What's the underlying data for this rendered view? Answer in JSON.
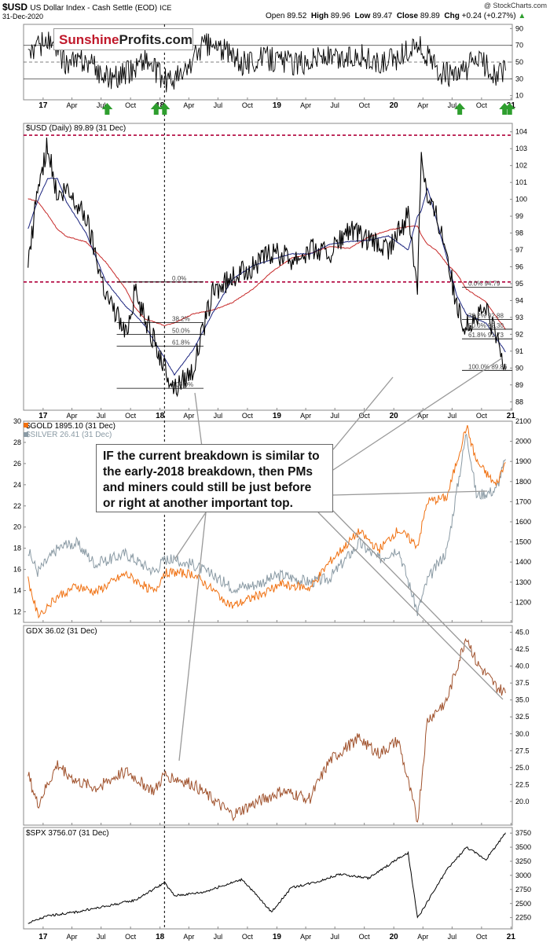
{
  "header": {
    "symbol": "$USD",
    "symbol_desc": "US Dollar Index - Cash Settle (EOD)",
    "exchange": "ICE",
    "date": "31-Dec-2020",
    "source": "@ StockCharts.com",
    "open_label": "Open",
    "open": "89.52",
    "high_label": "High",
    "high": "89.96",
    "low_label": "Low",
    "low": "89.47",
    "close_label": "Close",
    "close": "89.89",
    "chg_label": "Chg",
    "chg": "+0.24 (+0.27%)"
  },
  "logo": {
    "part1": "Sunshine",
    "part2": "Profits.com"
  },
  "callout": {
    "text": "IF the current breakdown is similar to the early-2018 breakdown, then PMs and miners could still be just before or right at another important top."
  },
  "x_axis": {
    "labels": [
      "17",
      "Apr",
      "Jul",
      "Oct",
      "18",
      "Apr",
      "Jul",
      "Oct",
      "19",
      "Apr",
      "Jul",
      "Oct",
      "20",
      "Apr",
      "Jul",
      "Oct",
      "21"
    ],
    "bold_labels": [
      "17",
      "18",
      "19",
      "20",
      "21"
    ]
  },
  "colors": {
    "usd": "#000000",
    "gold": "#f07010",
    "silver": "#8a9aa4",
    "gdx": "#a0522d",
    "spx": "#000000",
    "ma_short": "#1a237e",
    "ma_long": "#c62828",
    "signal": "#2e9e2e",
    "dashed_red": "#b0003a"
  },
  "chart_data": [
    {
      "type": "line",
      "name": "rsi_panel",
      "ylim": [
        5,
        95
      ],
      "ticks": [
        10,
        30,
        50,
        70,
        90
      ],
      "reference_lines": [
        30,
        50,
        70
      ],
      "signals": [
        "green-up-arrow x6"
      ],
      "x": [
        "2016-11",
        "2017-01",
        "2017-03",
        "2017-05",
        "2017-07",
        "2017-09",
        "2017-11",
        "2018-01",
        "2018-03",
        "2018-05",
        "2018-07",
        "2018-09",
        "2018-11",
        "2019-01",
        "2019-03",
        "2019-05",
        "2019-07",
        "2019-09",
        "2019-11",
        "2020-01",
        "2020-03",
        "2020-05",
        "2020-07",
        "2020-09",
        "2020-11",
        "2020-12"
      ],
      "values": [
        62,
        75,
        48,
        52,
        32,
        35,
        55,
        28,
        35,
        72,
        66,
        48,
        55,
        52,
        48,
        58,
        52,
        60,
        45,
        55,
        72,
        40,
        30,
        55,
        35,
        40
      ]
    },
    {
      "type": "line",
      "title": "$USD (Daily) 89.89 (31 Dec)",
      "ylim": [
        87.5,
        104.5
      ],
      "ticks": [
        88,
        89,
        90,
        91,
        92,
        93,
        94,
        95,
        96,
        97,
        98,
        99,
        100,
        101,
        102,
        103,
        104
      ],
      "x": [
        "2016-11",
        "2016-12",
        "2017-01",
        "2017-02",
        "2017-03",
        "2017-05",
        "2017-07",
        "2017-09",
        "2017-10",
        "2017-11",
        "2018-01",
        "2018-02",
        "2018-04",
        "2018-06",
        "2018-08",
        "2018-10",
        "2018-12",
        "2019-02",
        "2019-04",
        "2019-06",
        "2019-08",
        "2019-10",
        "2019-12",
        "2020-02",
        "2020-03",
        "2020-03b",
        "2020-04",
        "2020-05",
        "2020-06",
        "2020-07",
        "2020-08",
        "2020-10",
        "2020-11",
        "2020-12"
      ],
      "values": [
        96.0,
        100.5,
        103.2,
        100.0,
        100.5,
        99.0,
        94.5,
        92.0,
        94.5,
        93.0,
        90.0,
        88.8,
        90.0,
        94.5,
        95.3,
        96.0,
        96.8,
        96.5,
        97.0,
        96.8,
        98.2,
        97.5,
        97.0,
        99.0,
        95.0,
        103.0,
        100.0,
        99.0,
        97.0,
        93.5,
        92.5,
        93.5,
        92.0,
        89.9
      ],
      "dashed_levels": [
        103.8,
        95.1
      ],
      "fib_2018": [
        {
          "label": "0.0%",
          "value": 95.1
        },
        {
          "label": "38.2%",
          "value": 92.7
        },
        {
          "label": "50.0%",
          "value": 92.0
        },
        {
          "label": "61.8%",
          "value": 91.3
        },
        {
          "label": "100.0%",
          "value": 88.8
        }
      ],
      "fib_2020": [
        {
          "label": "0.0% 94.79",
          "value": 94.79
        },
        {
          "label": "38.2% 92.88",
          "value": 92.88
        },
        {
          "label": "50.0% 92.30",
          "value": 92.3
        },
        {
          "label": "61.8% 91.73",
          "value": 91.73
        },
        {
          "label": "100.0% 89.86",
          "value": 89.86
        }
      ]
    },
    {
      "type": "line",
      "series": [
        {
          "name": "$GOLD 1895.10 (31 Dec)",
          "axis": "right",
          "ylim": [
            1100,
            2100
          ],
          "ticks": [
            1200,
            1300,
            1400,
            1500,
            1600,
            1700,
            1800,
            1900,
            2000,
            2100
          ],
          "x": [
            "2016-11",
            "2016-12",
            "2017-02",
            "2017-04",
            "2017-06",
            "2017-09",
            "2017-12",
            "2018-01",
            "2018-04",
            "2018-08",
            "2018-10",
            "2019-01",
            "2019-04",
            "2019-06",
            "2019-09",
            "2019-11",
            "2020-01",
            "2020-03",
            "2020-04",
            "2020-06",
            "2020-08",
            "2020-09",
            "2020-11",
            "2020-12"
          ],
          "values": [
            1310,
            1135,
            1230,
            1280,
            1250,
            1340,
            1250,
            1350,
            1340,
            1180,
            1220,
            1290,
            1270,
            1400,
            1550,
            1460,
            1560,
            1480,
            1700,
            1720,
            2075,
            1900,
            1780,
            1895
          ]
        },
        {
          "name": "$SILVER 26.41 (31 Dec)",
          "axis": "left",
          "ylim": [
            11,
            30
          ],
          "ticks": [
            12,
            14,
            16,
            18,
            20,
            22,
            24,
            26,
            28,
            30
          ],
          "x": [
            "2016-11",
            "2016-12",
            "2017-02",
            "2017-04",
            "2017-06",
            "2017-09",
            "2017-12",
            "2018-01",
            "2018-04",
            "2018-08",
            "2018-10",
            "2019-01",
            "2019-04",
            "2019-06",
            "2019-09",
            "2019-11",
            "2020-01",
            "2020-03",
            "2020-04",
            "2020-06",
            "2020-08",
            "2020-09",
            "2020-11",
            "2020-12"
          ],
          "values": [
            17.8,
            15.8,
            18.0,
            18.5,
            16.5,
            17.5,
            15.8,
            17.0,
            16.5,
            14.3,
            14.5,
            15.5,
            14.8,
            15.2,
            18.5,
            17.0,
            18.0,
            12.0,
            15.0,
            17.8,
            29.0,
            23.0,
            23.5,
            26.41
          ]
        }
      ]
    },
    {
      "type": "line",
      "title": "GDX 36.02 (31 Dec)",
      "ylim": [
        16.5,
        46
      ],
      "ticks": [
        20.0,
        22.5,
        25.0,
        27.5,
        30.0,
        32.5,
        35.0,
        37.5,
        40.0,
        42.5,
        45.0
      ],
      "x": [
        "2016-11",
        "2016-12",
        "2017-02",
        "2017-04",
        "2017-06",
        "2017-09",
        "2017-12",
        "2018-01",
        "2018-04",
        "2018-08",
        "2018-10",
        "2019-01",
        "2019-04",
        "2019-06",
        "2019-09",
        "2019-11",
        "2020-01",
        "2020-03",
        "2020-04",
        "2020-06",
        "2020-08",
        "2020-09",
        "2020-11",
        "2020-12"
      ],
      "values": [
        24.0,
        19.5,
        25.5,
        23.0,
        22.0,
        24.5,
        21.5,
        24.0,
        22.5,
        18.0,
        19.5,
        21.5,
        20.5,
        26.0,
        29.5,
        27.0,
        29.0,
        17.0,
        32.0,
        35.0,
        44.5,
        40.5,
        37.0,
        36.02
      ]
    },
    {
      "type": "line",
      "title": "$SPX 3756.07 (31 Dec)",
      "ylim": [
        2050,
        3850
      ],
      "ticks": [
        2250,
        2500,
        2750,
        3000,
        3250,
        3500,
        3750
      ],
      "x": [
        "2016-11",
        "2017-01",
        "2017-04",
        "2017-07",
        "2017-10",
        "2018-01",
        "2018-02",
        "2018-05",
        "2018-09",
        "2018-12",
        "2019-02",
        "2019-05",
        "2019-07",
        "2019-10",
        "2020-01",
        "2020-02",
        "2020-03",
        "2020-06",
        "2020-08",
        "2020-10",
        "2020-12"
      ],
      "values": [
        2150,
        2280,
        2350,
        2450,
        2560,
        2870,
        2640,
        2700,
        2930,
        2350,
        2780,
        2900,
        3020,
        2950,
        3300,
        3390,
        2240,
        3100,
        3500,
        3280,
        3756
      ]
    }
  ]
}
